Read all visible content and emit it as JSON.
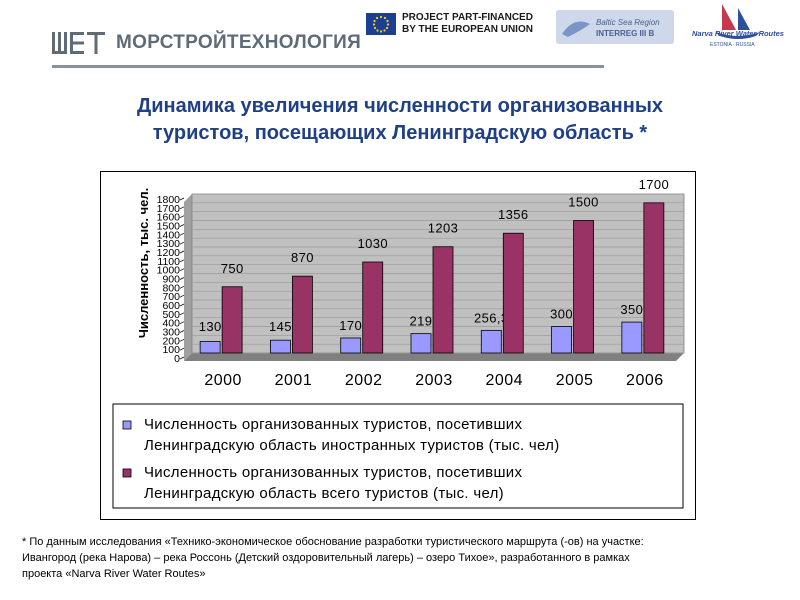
{
  "header": {
    "company": "МОРСТРОЙТЕХНОЛОГИЯ",
    "eu_line1": "PROJECT PART-FINANCED",
    "eu_line2": "BY THE EUROPEAN UNION",
    "interreg_line1": "Baltic Sea Region",
    "interreg_line2": "INTERREG III B",
    "narva_label": "Narva River Water Routes",
    "narva_sub": "ESTONIA · RUSSIA"
  },
  "title_line1": "Динамика увеличения численности организованных",
  "title_line2": "туристов, посещающих Ленинградскую область *",
  "chart_data": {
    "type": "bar",
    "categories": [
      "2000",
      "2001",
      "2002",
      "2003",
      "2004",
      "2005",
      "2006"
    ],
    "series": [
      {
        "name_line1": "Численность организованных туристов, посетивших",
        "name_line2": "Ленинградскую область иностранных туристов (тыс. чел)",
        "values": [
          130,
          145,
          170,
          219,
          256.3,
          300,
          350
        ],
        "labels": [
          "130",
          "145",
          "170",
          "219",
          "256,3",
          "300",
          "350"
        ],
        "color": "#9999ff"
      },
      {
        "name_line1": "Численность организованных туристов, посетивших",
        "name_line2": "Ленинградскую область всего туристов (тыс. чел)",
        "values": [
          750,
          870,
          1030,
          1203,
          1356,
          1500,
          1700
        ],
        "labels": [
          "750",
          "870",
          "1030",
          "1203",
          "1356",
          "1500",
          "1700"
        ],
        "color": "#993366"
      }
    ],
    "ylabel": "Численность, тыс. чел.",
    "ylim": [
      0,
      1800
    ],
    "yticks": [
      "0",
      "100",
      "200",
      "300",
      "400",
      "500",
      "600",
      "700",
      "800",
      "900",
      "1000",
      "1100",
      "1200",
      "1300",
      "1400",
      "1500",
      "1600",
      "1700",
      "1800"
    ],
    "plot_background": "#c0c0c0",
    "legend_position": "bottom"
  },
  "footnote_line1": "* По данным исследования «Технико-экономическое обоснование разработки туристического маршрута (-ов) на участке:",
  "footnote_line2": "Ивангород (река Нарова) – река Россонь (Детский оздоровительный лагерь) – озеро Тихое», разработанного в рамках",
  "footnote_line3": "проекта «Narva River Water Routes»"
}
